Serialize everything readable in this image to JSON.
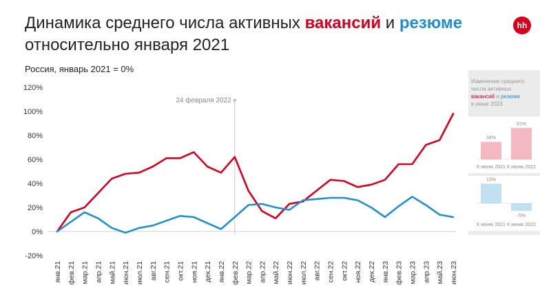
{
  "header": {
    "title_line1_prefix": "Динамика среднего числа активных",
    "title_vacancies": "вакансий",
    "title_and": "и",
    "title_resumes": "резюме",
    "title_line2": "относительно января 2021",
    "subtitle": "Россия, январь 2021 = 0%",
    "logo_text": "hh"
  },
  "colors": {
    "vacancies": "#d6001c",
    "resumes": "#1f8fd0",
    "panel": "#ececec"
  },
  "chart_data": [
    {
      "type": "line",
      "categories": [
        "янв.21",
        "фев.21",
        "мар.21",
        "апр.21",
        "май.21",
        "июн.21",
        "июл.21",
        "авг.21",
        "сен.21",
        "окт.21",
        "ноя.21",
        "дек.21",
        "янв.22",
        "фев.22",
        "мар.22",
        "апр.22",
        "май.22",
        "июн.22",
        "июл.22",
        "авг.22",
        "сен.22",
        "окт.22",
        "ноя.22",
        "дек.22",
        "янв.23",
        "фев.23",
        "мар.23",
        "апр.23",
        "май.23",
        "июн.23"
      ],
      "y_tick_labels": [
        "120%",
        "100%",
        "80%",
        "60%",
        "40%",
        "20%",
        "0%",
        "-20%"
      ],
      "ylim": [
        -20,
        120
      ],
      "grid": false,
      "annotation": {
        "label": "24 февраля 2022",
        "position": 13.0
      },
      "series": [
        {
          "key": "vacancies",
          "values": [
            0,
            16,
            20,
            32,
            44,
            48,
            49,
            54,
            61,
            61,
            66,
            54,
            49,
            62,
            34,
            17,
            11,
            23,
            25,
            34,
            43,
            42,
            37,
            39,
            43,
            56,
            56,
            72,
            76,
            98
          ]
        },
        {
          "key": "resumes",
          "values": [
            0,
            8,
            16,
            11,
            3,
            -1,
            3,
            5,
            9,
            13,
            12,
            7,
            2,
            12,
            22,
            23,
            20,
            18,
            26,
            27,
            28,
            28,
            26,
            20,
            12,
            21,
            29,
            22,
            14,
            12
          ]
        }
      ]
    },
    {
      "type": "bar",
      "title_line1": "Изменение среднего",
      "title_line2": "числа активных",
      "title_vacancies": "вакансий",
      "title_and": "и",
      "title_resumes": "резюме",
      "title_line4": "в июне 2023",
      "categories": [
        "К июню 2021",
        "К июню 2022"
      ],
      "series": [
        {
          "key": "vacancies",
          "values": [
            34,
            61
          ],
          "labels": [
            "34%",
            "61%"
          ]
        },
        {
          "key": "resumes",
          "values": [
            13,
            -5
          ],
          "labels": [
            "13%",
            "-5%"
          ]
        }
      ]
    }
  ]
}
